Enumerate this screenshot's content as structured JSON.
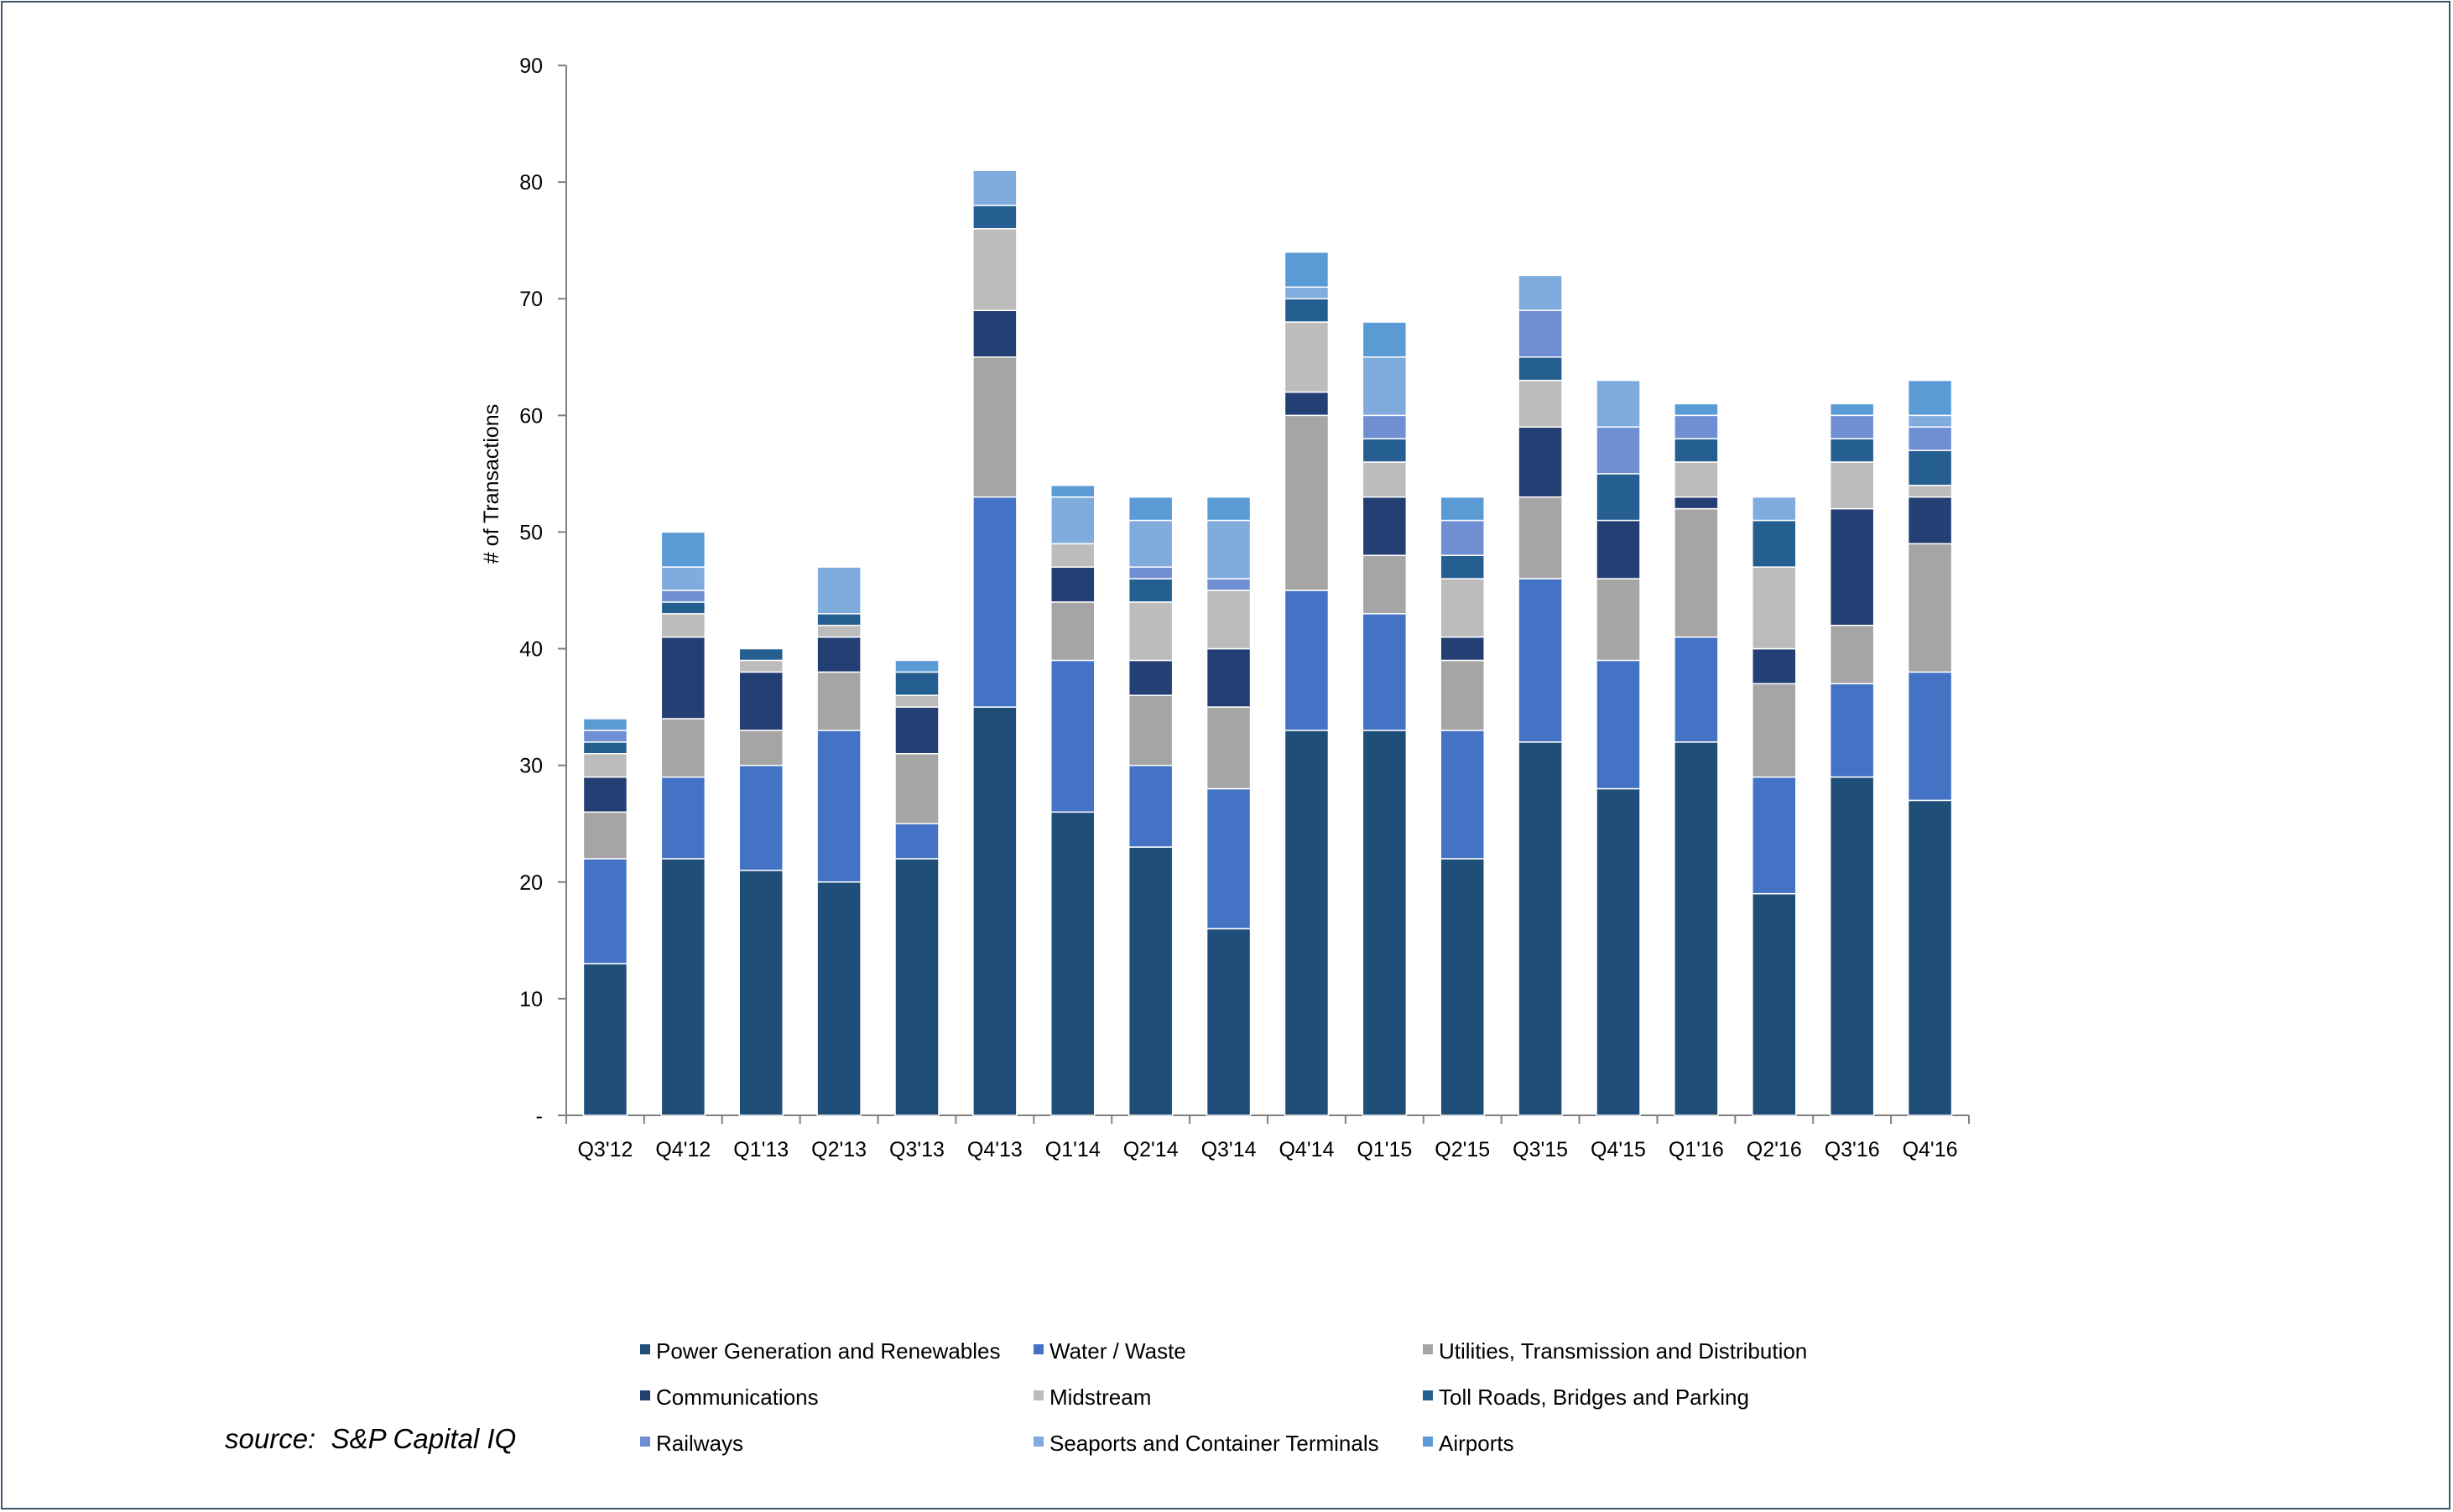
{
  "chart_data": {
    "type": "bar",
    "stacked": true,
    "ylabel": "# of Transactions",
    "xlabel": "",
    "ylim": [
      0,
      90
    ],
    "y_ticks": [
      0,
      10,
      20,
      30,
      40,
      50,
      60,
      70,
      80,
      90
    ],
    "y_tick_labels": [
      "-",
      "10",
      "20",
      "30",
      "40",
      "50",
      "60",
      "70",
      "80",
      "90"
    ],
    "categories": [
      "Q3'12",
      "Q4'12",
      "Q1'13",
      "Q2'13",
      "Q3'13",
      "Q4'13",
      "Q1'14",
      "Q2'14",
      "Q3'14",
      "Q4'14",
      "Q1'15",
      "Q2'15",
      "Q3'15",
      "Q4'15",
      "Q1'16",
      "Q2'16",
      "Q3'16",
      "Q4'16"
    ],
    "legend_position": "bottom",
    "series": [
      {
        "name": "Power Generation and Renewables",
        "color": "#1f4e79",
        "values": [
          13,
          22,
          21,
          20,
          22,
          35,
          26,
          23,
          16,
          33,
          33,
          22,
          32,
          28,
          32,
          19,
          29,
          27
        ]
      },
      {
        "name": "Water / Waste",
        "color": "#4472c4",
        "values": [
          9,
          7,
          9,
          13,
          3,
          18,
          13,
          7,
          12,
          12,
          10,
          11,
          14,
          11,
          9,
          10,
          8,
          11
        ]
      },
      {
        "name": "Utilities, Transmission and Distribution",
        "color": "#a5a5a5",
        "values": [
          4,
          5,
          3,
          5,
          6,
          12,
          5,
          6,
          7,
          15,
          5,
          6,
          7,
          7,
          11,
          8,
          5,
          11
        ]
      },
      {
        "name": "Communications",
        "color": "#243f73",
        "values": [
          3,
          7,
          5,
          3,
          4,
          4,
          3,
          3,
          5,
          2,
          5,
          2,
          6,
          5,
          1,
          3,
          10,
          4
        ]
      },
      {
        "name": "Midstream",
        "color": "#bcbcbc",
        "values": [
          2,
          2,
          1,
          1,
          1,
          7,
          2,
          5,
          5,
          6,
          3,
          5,
          4,
          0,
          3,
          7,
          4,
          1
        ]
      },
      {
        "name": "Toll Roads, Bridges and Parking",
        "color": "#255e91",
        "values": [
          1,
          1,
          1,
          1,
          2,
          2,
          0,
          2,
          0,
          2,
          2,
          2,
          2,
          4,
          2,
          4,
          2,
          3
        ]
      },
      {
        "name": "Railways",
        "color": "#6f8fd3",
        "values": [
          1,
          1,
          0,
          0,
          0,
          0,
          0,
          1,
          1,
          0,
          2,
          3,
          4,
          4,
          2,
          0,
          2,
          2
        ]
      },
      {
        "name": "Seaports and Container Terminals",
        "color": "#7facdd",
        "values": [
          0,
          2,
          0,
          4,
          0,
          3,
          4,
          4,
          5,
          1,
          5,
          0,
          3,
          4,
          0,
          2,
          0,
          1
        ]
      },
      {
        "name": "Airports",
        "color": "#5b9bd5",
        "values": [
          1,
          3,
          0,
          0,
          1,
          0,
          1,
          2,
          2,
          3,
          3,
          2,
          0,
          0,
          1,
          0,
          1,
          3
        ]
      }
    ]
  },
  "source_note": "source:  S&P Capital IQ"
}
